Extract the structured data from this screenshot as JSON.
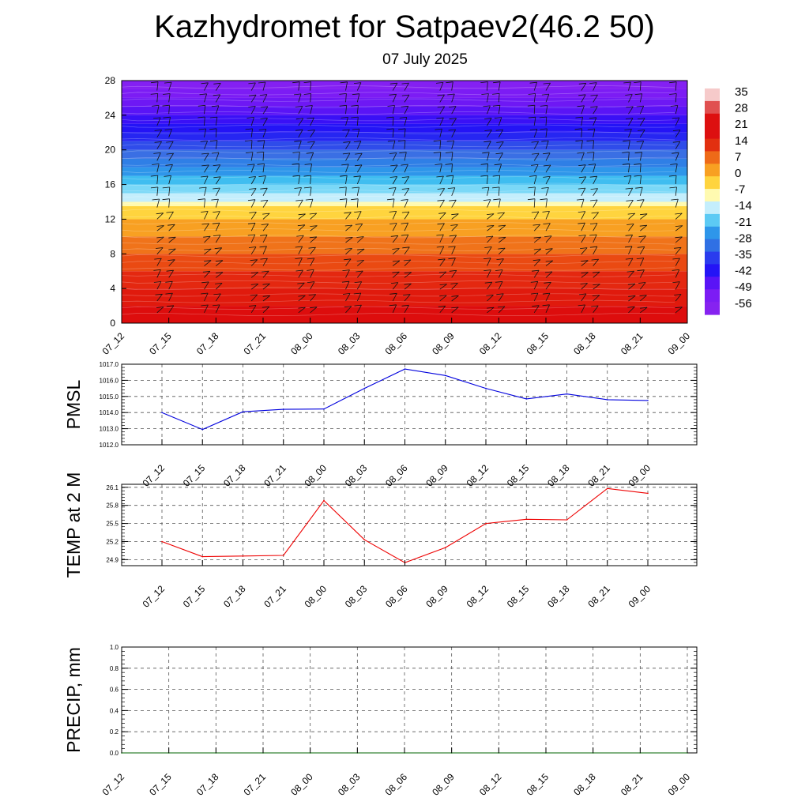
{
  "header": {
    "title": "Kazhydromet for Satpaev2(46.2 50)",
    "subtitle": "07 July 2025"
  },
  "chart_data": [
    {
      "type": "heatmap",
      "ylim": [
        0,
        28
      ],
      "yticks": [
        "0",
        "4",
        "8",
        "12",
        "16",
        "20",
        "24",
        "28"
      ],
      "categories": [
        "07_12",
        "07_15",
        "07_18",
        "07_21",
        "08_00",
        "08_03",
        "08_06",
        "08_09",
        "08_12",
        "08_15",
        "08_18",
        "08_21",
        "09_00"
      ],
      "colorbar_labels": [
        "35",
        "28",
        "21",
        "14",
        "7",
        "0",
        "-7",
        "-14",
        "-21",
        "-28",
        "-35",
        "-42",
        "-49",
        "-56"
      ],
      "levels": [
        0,
        2,
        4,
        6,
        8,
        10,
        12,
        13.5,
        14,
        15,
        16,
        17,
        18,
        19,
        20,
        21,
        22,
        23,
        24,
        25,
        26,
        27,
        28
      ],
      "level_colors": [
        "#dd0d0d",
        "#e01a0d",
        "#e42810",
        "#ea4a12",
        "#f0731a",
        "#f8a022",
        "#ffd43e",
        "#fffab0",
        "#c4eefc",
        "#7ad8f7",
        "#3fbdf0",
        "#2e96ea",
        "#2f7fe6",
        "#3a6fe4",
        "#2f4cea",
        "#2626f2",
        "#2414f6",
        "#3a10f6",
        "#5a14f6",
        "#6e18f4",
        "#7c1cf4",
        "#8420f2",
        "#8622f0"
      ],
      "grid": false
    },
    {
      "type": "line",
      "ylabel": "PMSL",
      "ylim": [
        1012,
        1017
      ],
      "yticks": [
        "1012.0",
        "1013.0",
        "1014.0",
        "1015.0",
        "1016.0",
        "1017.0"
      ],
      "categories": [
        "07_12",
        "07_15",
        "07_18",
        "07_21",
        "08_00",
        "08_03",
        "08_06",
        "08_09",
        "08_12",
        "08_15",
        "08_18",
        "08_21",
        "09_00"
      ],
      "values": [
        1014.0,
        1012.95,
        1014.05,
        1014.2,
        1014.22,
        1015.5,
        1016.7,
        1016.3,
        1015.5,
        1014.85,
        1015.15,
        1014.8,
        1014.75
      ],
      "color": "#0000dd",
      "grid": true
    },
    {
      "type": "line",
      "ylabel": "TEMP at 2 M",
      "ylim": [
        24.8,
        26.15
      ],
      "yticks": [
        "24.9",
        "25.2",
        "25.5",
        "25.8",
        "26.1"
      ],
      "categories": [
        "07_12",
        "07_15",
        "07_18",
        "07_21",
        "08_00",
        "08_03",
        "08_06",
        "08_09",
        "08_12",
        "08_15",
        "08_18",
        "08_21",
        "09_00"
      ],
      "values": [
        25.2,
        24.95,
        24.96,
        24.97,
        25.88,
        25.23,
        24.85,
        25.1,
        25.5,
        25.57,
        25.56,
        26.08,
        26.0
      ],
      "color": "#ee0000",
      "grid": true
    },
    {
      "type": "line",
      "ylabel": "PRECIP, mm",
      "ylim": [
        0,
        1
      ],
      "yticks": [
        "0.0",
        "0.2",
        "0.4",
        "0.6",
        "0.8",
        "1.0"
      ],
      "categories": [
        "07_12",
        "07_15",
        "07_18",
        "07_21",
        "08_00",
        "08_03",
        "08_06",
        "08_09",
        "08_12",
        "08_15",
        "08_18",
        "08_21",
        "09_00"
      ],
      "values": [
        0,
        0,
        0,
        0,
        0,
        0,
        0,
        0,
        0,
        0,
        0,
        0,
        0
      ],
      "color": "#006400",
      "grid": true
    }
  ]
}
